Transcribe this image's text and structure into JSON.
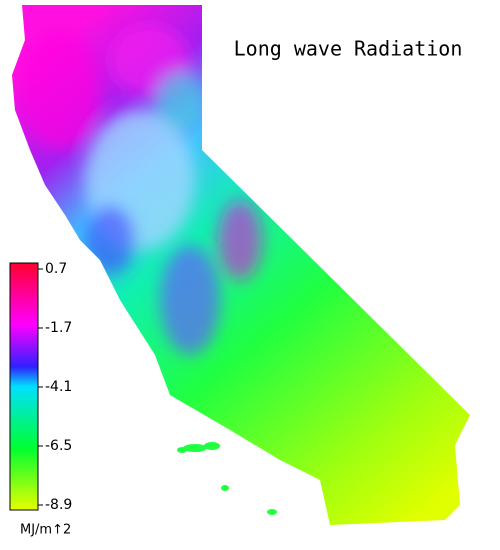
{
  "title": "Long wave Radiation",
  "colorbar": {
    "lim": [
      -8.9,
      0.7
    ],
    "ticks": [
      0.7,
      -1.7,
      -4.1,
      -6.5,
      -8.9
    ],
    "unit": "MJ/m↑2"
  }
}
